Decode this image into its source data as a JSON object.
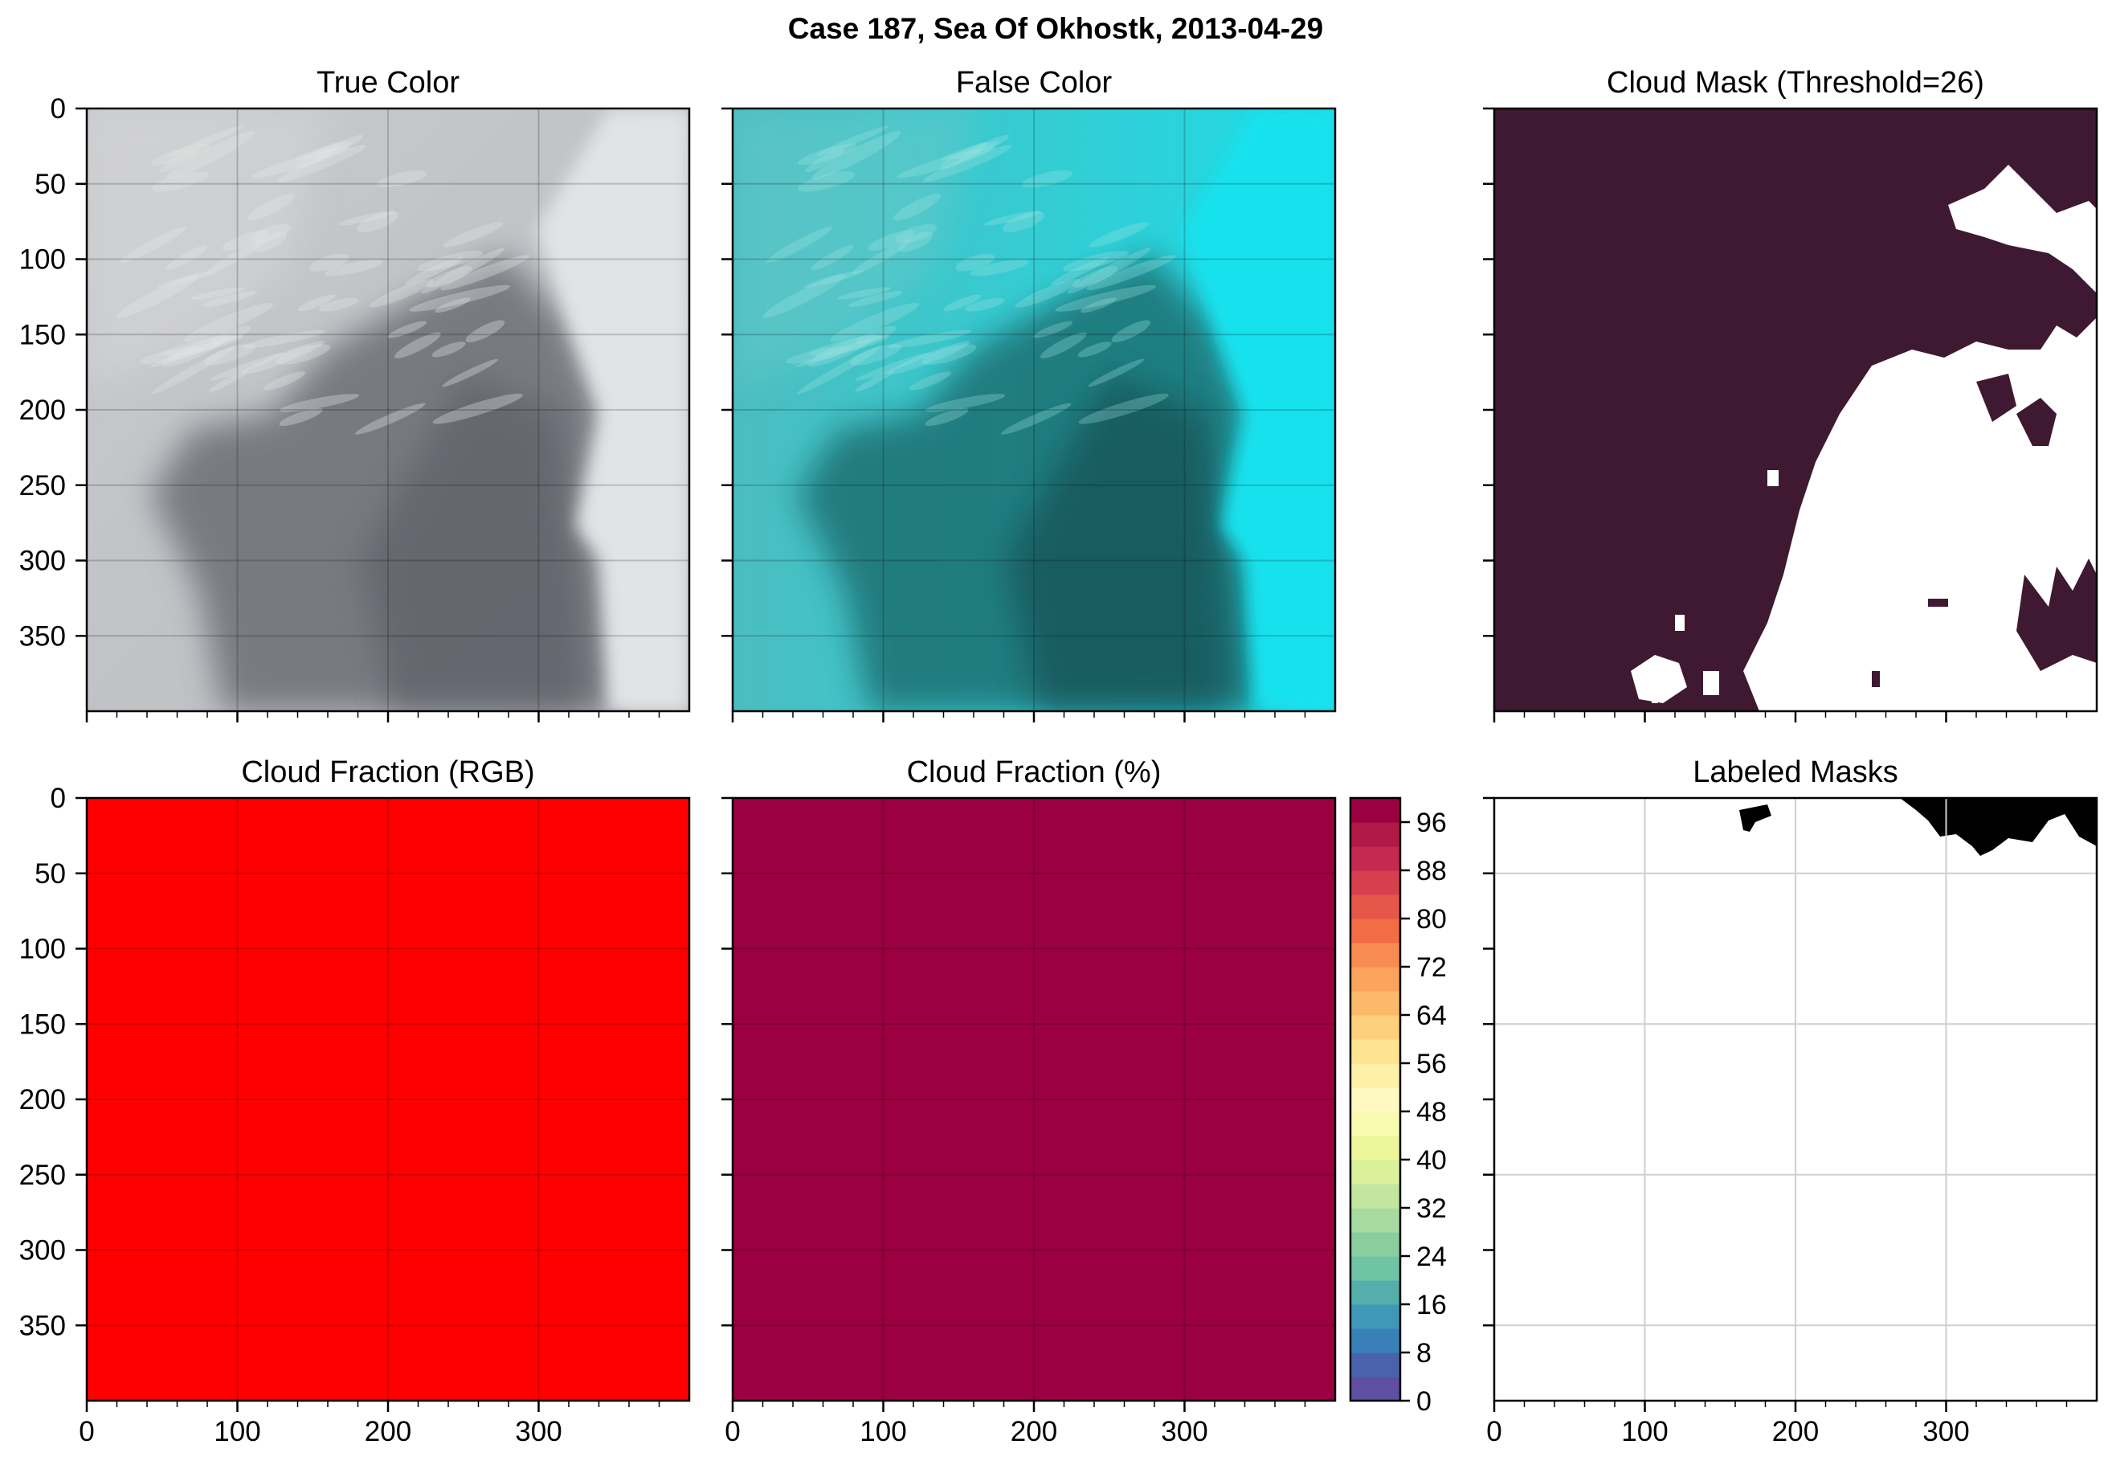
{
  "figure": {
    "title": "Case 187, Sea Of Okhostk, 2013-04-29"
  },
  "chart_data": [
    {
      "type": "heatmap",
      "title": "True Color",
      "content": "rgb-image",
      "xticks": [
        0,
        100,
        200,
        300
      ],
      "yticks": [
        0,
        50,
        100,
        150,
        200,
        250,
        300,
        350
      ],
      "xlim": [
        0,
        400
      ],
      "ylim": [
        400,
        0
      ],
      "show_xticklabels": false,
      "show_yticklabels": true,
      "grid": true
    },
    {
      "type": "heatmap",
      "title": "False Color",
      "content": "rgb-image",
      "xticks": [
        0,
        100,
        200,
        300
      ],
      "yticks": [
        0,
        50,
        100,
        150,
        200,
        250,
        300,
        350
      ],
      "xlim": [
        0,
        400
      ],
      "ylim": [
        400,
        0
      ],
      "show_xticklabels": false,
      "show_yticklabels": false,
      "grid": true
    },
    {
      "type": "heatmap",
      "title": "Cloud Mask (Threshold=26)",
      "content": "binary-mask",
      "colors": {
        "cloud": "#3f1931",
        "clear": "#ffffff"
      },
      "xticks": [
        0,
        100,
        200,
        300
      ],
      "yticks": [
        0,
        50,
        100,
        150,
        200,
        250,
        300,
        350
      ],
      "xlim": [
        0,
        400
      ],
      "ylim": [
        400,
        0
      ],
      "show_xticklabels": false,
      "show_yticklabels": false,
      "grid": false
    },
    {
      "type": "heatmap",
      "title": "Cloud Fraction (RGB)",
      "content": "uniform-fill",
      "fill": "#ff0000",
      "xticks": [
        0,
        100,
        200,
        300
      ],
      "yticks": [
        0,
        50,
        100,
        150,
        200,
        250,
        300,
        350
      ],
      "xlim": [
        0,
        400
      ],
      "ylim": [
        400,
        0
      ],
      "show_xticklabels": true,
      "show_yticklabels": true,
      "grid": true
    },
    {
      "type": "heatmap",
      "title": "Cloud Fraction (%)",
      "content": "uniform-fill",
      "fill": "#9b0040",
      "value": 100,
      "xticks": [
        0,
        100,
        200,
        300
      ],
      "yticks": [
        0,
        50,
        100,
        150,
        200,
        250,
        300,
        350
      ],
      "xlim": [
        0,
        400
      ],
      "ylim": [
        400,
        0
      ],
      "show_xticklabels": true,
      "show_yticklabels": false,
      "grid": true,
      "colorbar": {
        "range": [
          0,
          100
        ],
        "ticks": [
          0,
          8,
          16,
          24,
          32,
          40,
          48,
          56,
          64,
          72,
          80,
          88,
          96
        ],
        "levels": 25,
        "colors": [
          "#5e4fa2",
          "#4a62ac",
          "#3980b9",
          "#3f98b8",
          "#55aeac",
          "#6ec4a4",
          "#8ace9f",
          "#a7dba0",
          "#c2e69f",
          "#daf09a",
          "#ecf79c",
          "#f8fbb0",
          "#fdf9c0",
          "#fff0a8",
          "#fee390",
          "#fed07e",
          "#fdb96a",
          "#fca45c",
          "#f88b51",
          "#f26c44",
          "#e55749",
          "#d6404e",
          "#c42a4f",
          "#b01847",
          "#9b0040"
        ]
      }
    },
    {
      "type": "heatmap",
      "title": "Labeled Masks",
      "content": "label-mask",
      "colors": {
        "background": "#ffffff",
        "label": "#000000"
      },
      "xticks": [
        0,
        100,
        200,
        300
      ],
      "yticks": [
        0,
        50,
        100,
        150,
        200,
        250,
        300,
        350
      ],
      "xlim": [
        0,
        400
      ],
      "ylim": [
        400,
        0
      ],
      "show_xticklabels": true,
      "show_yticklabels": false,
      "grid": true
    }
  ]
}
